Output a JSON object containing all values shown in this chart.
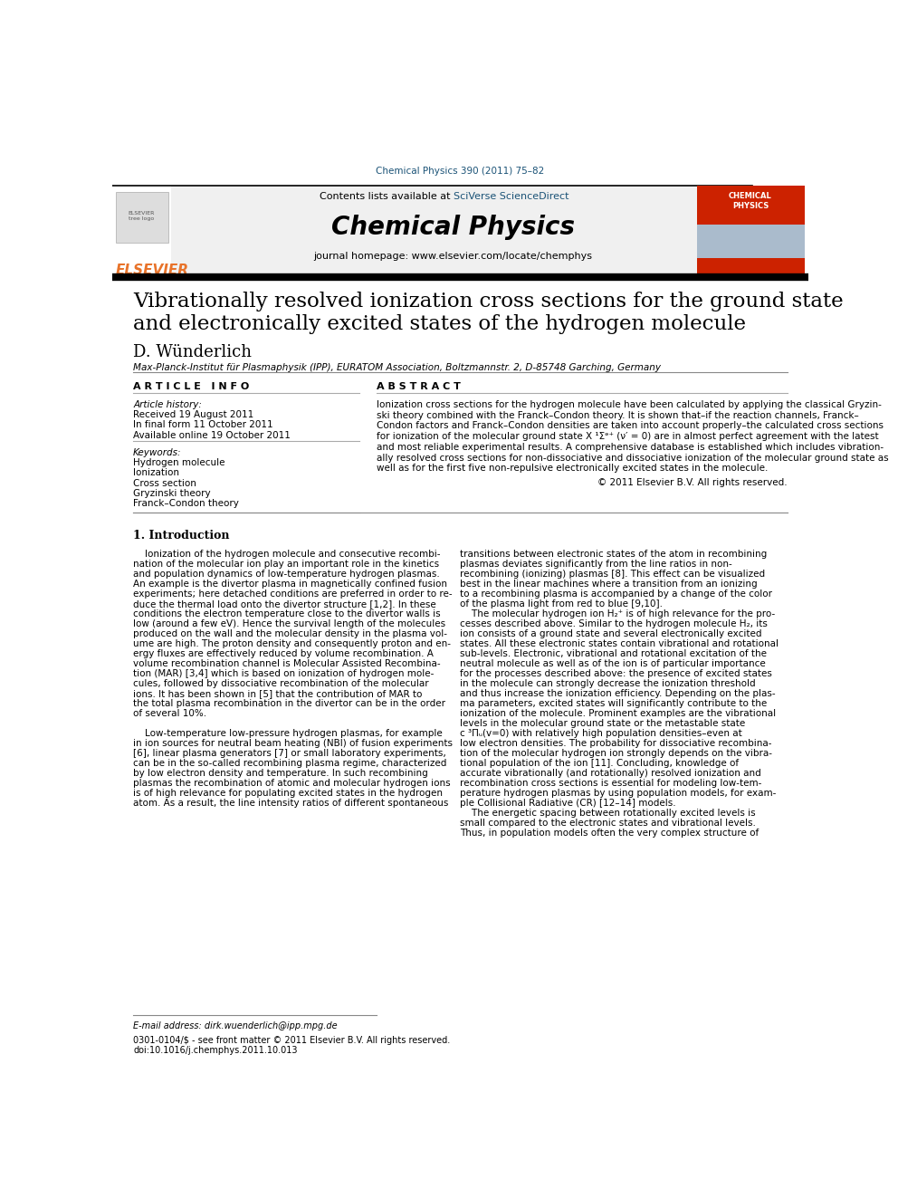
{
  "page_width": 9.92,
  "page_height": 13.23,
  "background_color": "#ffffff",
  "header_cite_color": "#1a5276",
  "header_cite_text": "Chemical Physics 390 (2011) 75–82",
  "journal_header_bg": "#f0f0f0",
  "journal_title": "Chemical Physics",
  "contents_text": "Contents lists available at ",
  "sciverse_text": "SciVerse ScienceDirect",
  "homepage_text": "journal homepage: www.elsevier.com/locate/chemphys",
  "elsevier_color": "#e8732a",
  "article_title_line1": "Vibrationally resolved ionization cross sections for the ground state",
  "article_title_line2": "and electronically excited states of the hydrogen molecule",
  "author": "D. Wünderlich",
  "affiliation": "Max-Planck-Institut für Plasmaphysik (IPP), EURATOM Association, Boltzmannstr. 2, D-85748 Garching, Germany",
  "article_info_header": "A R T I C L E   I N F O",
  "abstract_header": "A B S T R A C T",
  "article_history_label": "Article history:",
  "received": "Received 19 August 2011",
  "final_form": "In final form 11 October 2011",
  "available": "Available online 19 October 2011",
  "keywords_label": "Keywords:",
  "keywords": [
    "Hydrogen molecule",
    "Ionization",
    "Cross section",
    "Gryzinski theory",
    "Franck–Condon theory"
  ],
  "copyright_text": "© 2011 Elsevier B.V. All rights reserved.",
  "intro_header": "1. Introduction",
  "footnote_email": "E-mail address: dirk.wuenderlich@ipp.mpg.de",
  "footnote_line1": "0301-0104/$ - see front matter © 2011 Elsevier B.V. All rights reserved.",
  "footnote_line2": "doi:10.1016/j.chemphys.2011.10.013"
}
